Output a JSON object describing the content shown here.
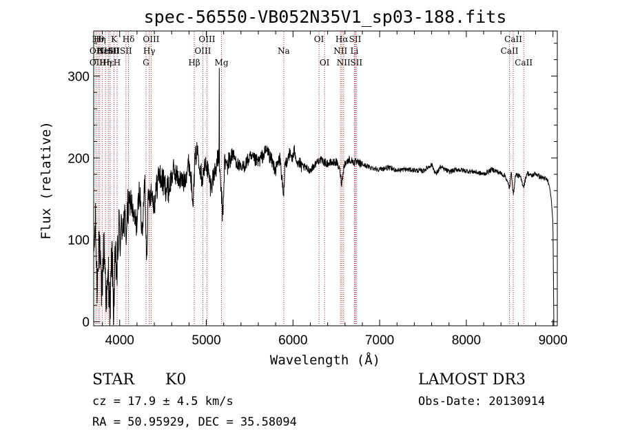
{
  "chart_data": {
    "type": "line",
    "title": "spec-56550-VB052N35V1_sp03-188.fits",
    "xlabel": "Wavelength (Å)",
    "ylabel": "Flux (relative)",
    "xlim": [
      3700,
      9050
    ],
    "ylim": [
      -5,
      355
    ],
    "xticks": [
      4000,
      5000,
      6000,
      7000,
      8000,
      9000
    ],
    "yticks": [
      0,
      100,
      200,
      300
    ],
    "xminor_step": 200,
    "yminor_step": 20,
    "spectrum_anchors": {
      "x": [
        3700,
        3720,
        3740,
        3760,
        3790,
        3820,
        3850,
        3870,
        3890,
        3910,
        3930,
        3950,
        3970,
        3990,
        4010,
        4040,
        4070,
        4100,
        4130,
        4160,
        4200,
        4230,
        4260,
        4290,
        4310,
        4330,
        4360,
        4400,
        4450,
        4500,
        4560,
        4620,
        4680,
        4740,
        4800,
        4850,
        4870,
        4900,
        4950,
        5000,
        5050,
        5100,
        5140,
        5160,
        5175,
        5190,
        5210,
        5240,
        5300,
        5400,
        5500,
        5600,
        5700,
        5800,
        5850,
        5880,
        5892,
        5905,
        5950,
        6000,
        6020,
        6050,
        6100,
        6200,
        6300,
        6400,
        6500,
        6540,
        6563,
        6590,
        6650,
        6700,
        6800,
        6900,
        7000,
        7100,
        7200,
        7300,
        7400,
        7500,
        7600,
        7650,
        7700,
        7800,
        7900,
        8000,
        8100,
        8200,
        8300,
        8400,
        8450,
        8498,
        8520,
        8542,
        8570,
        8620,
        8662,
        8700,
        8750,
        8800,
        8850,
        8900,
        8940,
        8960,
        8980,
        9000,
        9010
      ],
      "y": [
        80,
        120,
        40,
        110,
        30,
        95,
        20,
        60,
        10,
        90,
        15,
        75,
        60,
        115,
        100,
        130,
        110,
        140,
        150,
        125,
        120,
        165,
        100,
        175,
        80,
        150,
        160,
        145,
        180,
        170,
        160,
        185,
        175,
        170,
        195,
        150,
        200,
        210,
        175,
        195,
        165,
        185,
        200,
        170,
        155,
        125,
        195,
        190,
        205,
        185,
        200,
        195,
        210,
        185,
        200,
        165,
        145,
        190,
        205,
        200,
        210,
        195,
        190,
        185,
        198,
        193,
        195,
        185,
        168,
        192,
        198,
        195,
        192,
        188,
        186,
        188,
        185,
        186,
        185,
        184,
        192,
        180,
        189,
        183,
        186,
        184,
        183,
        180,
        186,
        181,
        178,
        163,
        183,
        155,
        180,
        177,
        165,
        182,
        178,
        181,
        177,
        175,
        172,
        165,
        150,
        120,
        -5
      ]
    },
    "spike": {
      "x": 5150,
      "y": 310
    },
    "line_markers": [
      {
        "x": 3728,
        "labels": [
          "OII",
          "OII"
        ],
        "rows": [
          1,
          2
        ]
      },
      {
        "x": 3750,
        "labels": [
          "Hθ"
        ],
        "rows": [
          0
        ]
      },
      {
        "x": 3770,
        "labels": [
          "Hη"
        ],
        "rows": [
          0
        ]
      },
      {
        "x": 3798,
        "labels": [
          "Hε"
        ],
        "rows": [
          1
        ]
      },
      {
        "x": 3835,
        "labels": [
          "Hη"
        ],
        "rows": [
          2
        ]
      },
      {
        "x": 3869,
        "labels": [
          "NeIII",
          "Hε"
        ],
        "rows": [
          1,
          2
        ]
      },
      {
        "x": 3889,
        "labels": [
          "He"
        ],
        "rows": [
          1
        ]
      },
      {
        "x": 3934,
        "labels": [
          "K",
          "SII"
        ],
        "rows": [
          0,
          1
        ]
      },
      {
        "x": 3970,
        "labels": [
          "H"
        ],
        "rows": [
          2
        ]
      },
      {
        "x": 4072,
        "labels": [
          "SII"
        ],
        "rows": [
          1
        ]
      },
      {
        "x": 4102,
        "labels": [
          "Hδ"
        ],
        "rows": [
          0
        ]
      },
      {
        "x": 4304,
        "labels": [
          "G"
        ],
        "rows": [
          2
        ]
      },
      {
        "x": 4341,
        "labels": [
          "Hγ"
        ],
        "rows": [
          1
        ]
      },
      {
        "x": 4363,
        "labels": [
          "OIII"
        ],
        "rows": [
          0
        ]
      },
      {
        "x": 4861,
        "labels": [
          "Hβ"
        ],
        "rows": [
          2
        ]
      },
      {
        "x": 4959,
        "labels": [
          "OIII"
        ],
        "rows": [
          1
        ]
      },
      {
        "x": 5007,
        "labels": [
          "OIII"
        ],
        "rows": [
          0
        ]
      },
      {
        "x": 5175,
        "labels": [
          "Mg"
        ],
        "rows": [
          2
        ]
      },
      {
        "x": 5893,
        "labels": [
          "Na"
        ],
        "rows": [
          1
        ]
      },
      {
        "x": 6300,
        "labels": [
          "OI"
        ],
        "rows": [
          0
        ]
      },
      {
        "x": 6364,
        "labels": [
          "OI"
        ],
        "rows": [
          2
        ]
      },
      {
        "x": 6548,
        "labels": [
          "NII"
        ],
        "rows": [
          1
        ]
      },
      {
        "x": 6563,
        "labels": [
          "Hα"
        ],
        "rows": [
          0
        ]
      },
      {
        "x": 6584,
        "labels": [
          "NII"
        ],
        "rows": [
          2
        ]
      },
      {
        "x": 6708,
        "labels": [
          "Li"
        ],
        "rows": [
          1
        ]
      },
      {
        "x": 6717,
        "labels": [
          "SII"
        ],
        "rows": [
          0
        ]
      },
      {
        "x": 6731,
        "labels": [
          "SII"
        ],
        "rows": [
          2
        ]
      },
      {
        "x": 8498,
        "labels": [
          "CaII"
        ],
        "rows": [
          1
        ]
      },
      {
        "x": 8542,
        "labels": [
          "CaII"
        ],
        "rows": [
          0
        ]
      },
      {
        "x": 8662,
        "labels": [
          "CaII"
        ],
        "rows": [
          2
        ]
      }
    ]
  },
  "info": {
    "object_class": "STAR",
    "subclass": "K0",
    "redshift": "cz = 17.9 ± 4.5 km/s",
    "coords": "RA =  50.95929, DEC =  35.58094",
    "survey": "LAMOST DR3",
    "obs_date": "Obs-Date: 20130914"
  },
  "colors": {
    "marker": "#b22222",
    "ink": "#000000"
  }
}
